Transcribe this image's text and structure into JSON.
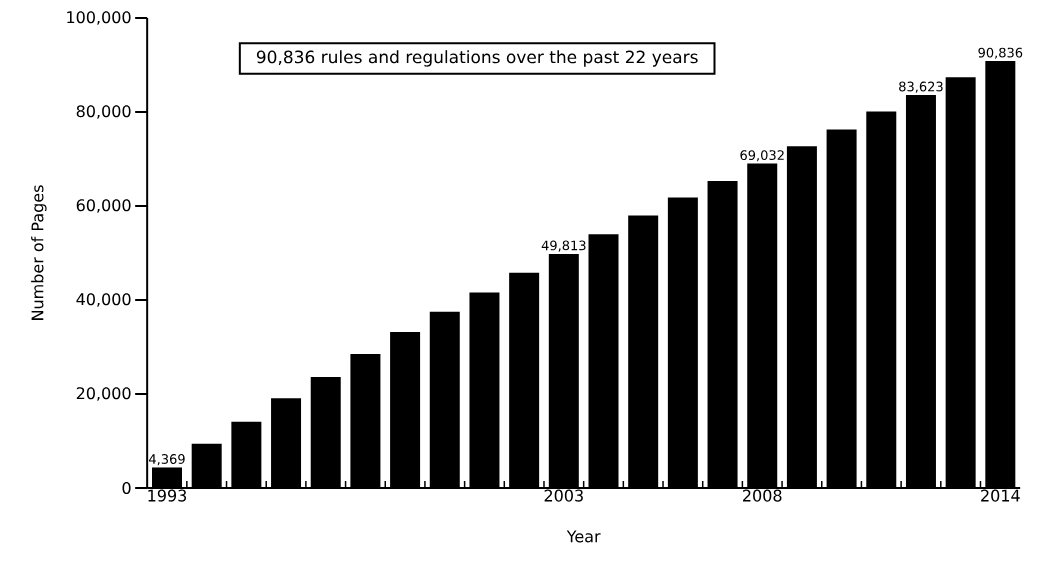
{
  "chart_data": {
    "type": "bar",
    "xlabel": "Year",
    "ylabel": "Number of Pages",
    "annotations": [
      "90,836 rules and regulations over the past 22 years"
    ],
    "categories": [
      "1993",
      null,
      null,
      null,
      null,
      null,
      null,
      null,
      null,
      null,
      "2003",
      null,
      null,
      null,
      null,
      "2008",
      null,
      null,
      null,
      null,
      null,
      "2014"
    ],
    "values": [
      4369,
      9400,
      14100,
      19100,
      23600,
      28500,
      33200,
      37500,
      41600,
      45800,
      49813,
      54000,
      58000,
      61800,
      65300,
      69032,
      72700,
      76300,
      80100,
      83623,
      87400,
      90836
    ],
    "value_labels": [
      "4,369",
      null,
      null,
      null,
      null,
      null,
      null,
      null,
      null,
      null,
      "49,813",
      null,
      null,
      null,
      null,
      "69,032",
      null,
      null,
      null,
      "83,623",
      null,
      "90,836"
    ],
    "color": "#000000",
    "ylim": [
      0,
      100000
    ],
    "yticks": [
      0,
      {
        "value": 20000,
        "label": "20,000"
      },
      {
        "value": 40000,
        "label": "40,000"
      },
      {
        "value": 60000,
        "label": "60,000"
      },
      {
        "value": 80000,
        "label": "80,000"
      },
      {
        "value": 100000,
        "label": "100,000"
      }
    ]
  }
}
